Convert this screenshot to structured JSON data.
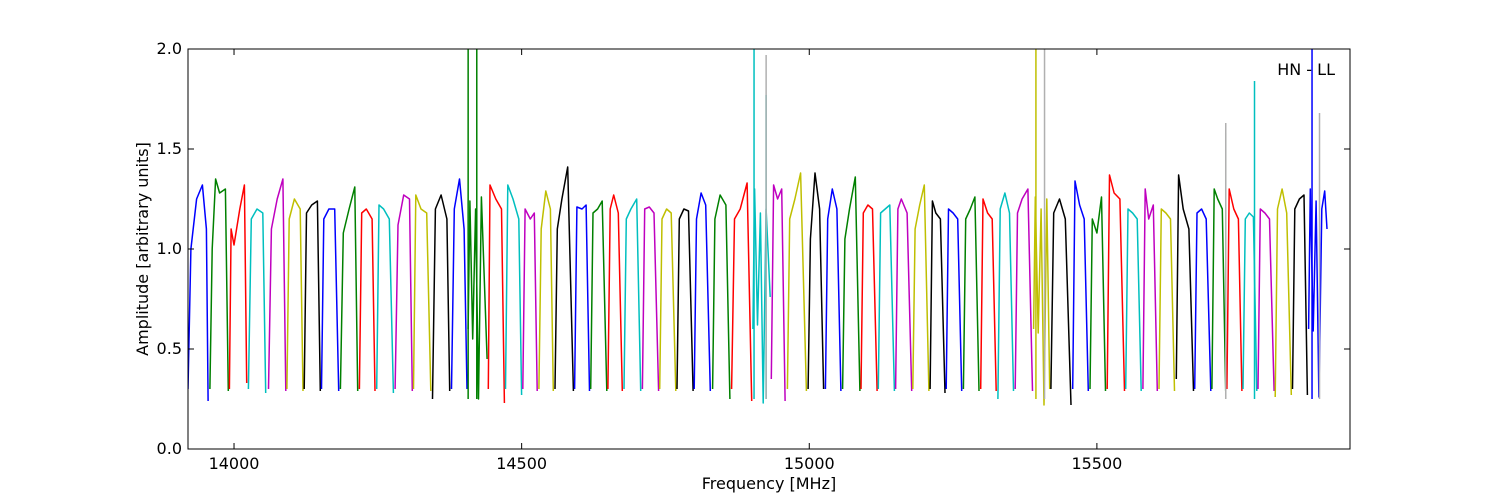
{
  "chart_data": {
    "type": "line",
    "title": "",
    "xlabel": "Frequency [MHz]",
    "ylabel": "Amplitude [arbitrary units]",
    "xlim": [
      13920,
      15940
    ],
    "ylim": [
      0.0,
      2.0
    ],
    "xticks": [
      14000,
      14500,
      15000,
      15500
    ],
    "yticks": [
      0.0,
      0.5,
      1.0,
      1.5,
      2.0
    ],
    "xtick_labels": [
      "14000",
      "14500",
      "15000",
      "15500"
    ],
    "ytick_labels": [
      "0.0",
      "0.5",
      "1.0",
      "1.5",
      "2.0"
    ],
    "grid": false,
    "annotation": "HN - LL",
    "annotation_position": "top-right",
    "color_cycle": [
      "#0000ff",
      "#008000",
      "#ff0000",
      "#00bfbf",
      "#bf00bf",
      "#bfbf00",
      "#000000"
    ],
    "series_description": "Repeating band-pass channel responses; each channel is a separate colored segment cycling blue, green, red, cyan, magenta, yellow, black.",
    "channels": [
      {
        "x": [
          13920,
          13925,
          13935,
          13945,
          13952,
          13955
        ],
        "y": [
          0.3,
          1.0,
          1.25,
          1.32,
          1.1,
          0.24
        ],
        "color": "#0000ff"
      },
      {
        "x": [
          13958,
          13962,
          13968,
          13975,
          13985,
          13990
        ],
        "y": [
          0.3,
          1.0,
          1.35,
          1.28,
          1.3,
          0.29
        ],
        "color": "#008000"
      },
      {
        "x": [
          13992,
          13995,
          14000,
          14010,
          14018,
          14022
        ],
        "y": [
          0.3,
          1.1,
          1.02,
          1.2,
          1.32,
          0.33
        ],
        "color": "#ff0000"
      },
      {
        "x": [
          14025,
          14030,
          14040,
          14050,
          14055
        ],
        "y": [
          0.3,
          1.15,
          1.2,
          1.18,
          0.28
        ],
        "color": "#00bfbf"
      },
      {
        "x": [
          14060,
          14065,
          14075,
          14085,
          14090
        ],
        "y": [
          0.3,
          1.1,
          1.25,
          1.35,
          0.29
        ],
        "color": "#bf00bf"
      },
      {
        "x": [
          14092,
          14096,
          14105,
          14115,
          14120
        ],
        "y": [
          0.3,
          1.15,
          1.25,
          1.2,
          0.29
        ],
        "color": "#bfbf00"
      },
      {
        "x": [
          14122,
          14126,
          14135,
          14145,
          14150
        ],
        "y": [
          0.3,
          1.18,
          1.22,
          1.24,
          0.29
        ],
        "color": "#000000"
      },
      {
        "x": [
          14152,
          14156,
          14165,
          14175,
          14182
        ],
        "y": [
          0.3,
          1.15,
          1.2,
          1.2,
          0.29
        ],
        "color": "#0000ff"
      },
      {
        "x": [
          14185,
          14190,
          14200,
          14210,
          14215
        ],
        "y": [
          0.3,
          1.08,
          1.2,
          1.31,
          0.29
        ],
        "color": "#008000"
      },
      {
        "x": [
          14218,
          14222,
          14230,
          14240,
          14245
        ],
        "y": [
          0.3,
          1.18,
          1.2,
          1.15,
          0.29
        ],
        "color": "#ff0000"
      },
      {
        "x": [
          14248,
          14252,
          14260,
          14270,
          14277
        ],
        "y": [
          0.3,
          1.22,
          1.2,
          1.15,
          0.28
        ],
        "color": "#00bfbf"
      },
      {
        "x": [
          14280,
          14285,
          14295,
          14305,
          14310
        ],
        "y": [
          0.3,
          1.12,
          1.27,
          1.25,
          0.29
        ],
        "color": "#bf00bf"
      },
      {
        "x": [
          14312,
          14316,
          14325,
          14335,
          14342
        ],
        "y": [
          0.3,
          1.27,
          1.2,
          1.18,
          0.29
        ],
        "color": "#bfbf00"
      },
      {
        "x": [
          14345,
          14350,
          14360,
          14370,
          14375
        ],
        "y": [
          0.25,
          1.2,
          1.27,
          1.15,
          0.29
        ],
        "color": "#000000"
      },
      {
        "x": [
          14378,
          14383,
          14392,
          14400,
          14405
        ],
        "y": [
          0.3,
          1.2,
          1.35,
          1.1,
          0.3
        ],
        "color": "#0000ff"
      },
      {
        "x": [
          14407,
          14410,
          14415,
          14420,
          14425,
          14430,
          14440
        ],
        "y": [
          0.6,
          1.24,
          0.55,
          1.2,
          0.25,
          1.26,
          0.45
        ],
        "color": "#008000"
      },
      {
        "x": [
          14442,
          14445,
          14455,
          14465,
          14470
        ],
        "y": [
          0.3,
          1.32,
          1.25,
          1.2,
          0.23
        ],
        "color": "#ff0000"
      },
      {
        "x": [
          14472,
          14476,
          14485,
          14495,
          14500
        ],
        "y": [
          0.3,
          1.32,
          1.25,
          1.15,
          0.27
        ],
        "color": "#00bfbf"
      },
      {
        "x": [
          14502,
          14506,
          14515,
          14522,
          14527
        ],
        "y": [
          0.3,
          1.2,
          1.15,
          1.18,
          0.29
        ],
        "color": "#bf00bf"
      },
      {
        "x": [
          14530,
          14534,
          14542,
          14550,
          14555
        ],
        "y": [
          0.3,
          1.1,
          1.29,
          1.2,
          0.29
        ],
        "color": "#bfbf00"
      },
      {
        "x": [
          14558,
          14562,
          14570,
          14580,
          14590
        ],
        "y": [
          0.3,
          1.1,
          1.25,
          1.41,
          0.29
        ],
        "color": "#000000"
      },
      {
        "x": [
          14592,
          14596,
          14605,
          14612,
          14618
        ],
        "y": [
          0.3,
          1.21,
          1.2,
          1.22,
          0.29
        ],
        "color": "#0000ff"
      },
      {
        "x": [
          14620,
          14624,
          14632,
          14640,
          14648
        ],
        "y": [
          0.3,
          1.18,
          1.2,
          1.24,
          0.29
        ],
        "color": "#008000"
      },
      {
        "x": [
          14650,
          14654,
          14660,
          14668,
          14675
        ],
        "y": [
          0.3,
          1.2,
          1.27,
          1.18,
          0.29
        ],
        "color": "#ff0000"
      },
      {
        "x": [
          14678,
          14682,
          14690,
          14700,
          14707
        ],
        "y": [
          0.3,
          1.15,
          1.2,
          1.25,
          0.29
        ],
        "color": "#00bfbf"
      },
      {
        "x": [
          14710,
          14714,
          14722,
          14730,
          14738
        ],
        "y": [
          0.3,
          1.2,
          1.21,
          1.18,
          0.29
        ],
        "color": "#bf00bf"
      },
      {
        "x": [
          14740,
          14744,
          14752,
          14760,
          14768
        ],
        "y": [
          0.3,
          1.15,
          1.2,
          1.18,
          0.29
        ],
        "color": "#bfbf00"
      },
      {
        "x": [
          14770,
          14774,
          14782,
          14790,
          14798
        ],
        "y": [
          0.3,
          1.15,
          1.2,
          1.19,
          0.29
        ],
        "color": "#000000"
      },
      {
        "x": [
          14800,
          14804,
          14812,
          14820,
          14828
        ],
        "y": [
          0.3,
          1.15,
          1.28,
          1.22,
          0.29
        ],
        "color": "#0000ff"
      },
      {
        "x": [
          14832,
          14836,
          14845,
          14855,
          14862
        ],
        "y": [
          0.3,
          1.15,
          1.27,
          1.22,
          0.25
        ],
        "color": "#008000"
      },
      {
        "x": [
          14865,
          14870,
          14880,
          14892,
          14900
        ],
        "y": [
          0.3,
          1.15,
          1.2,
          1.33,
          0.24
        ],
        "color": "#ff0000"
      },
      {
        "x": [
          14902,
          14905,
          14910,
          14915,
          14920,
          14925,
          14932
        ],
        "y": [
          0.6,
          1.3,
          0.62,
          1.18,
          0.23,
          1.2,
          0.76
        ],
        "color": "#00bfbf"
      },
      {
        "x": [
          14934,
          14938,
          14945,
          14952,
          14958
        ],
        "y": [
          0.35,
          1.32,
          1.25,
          1.3,
          0.24
        ],
        "color": "#bf00bf"
      },
      {
        "x": [
          14962,
          14966,
          14975,
          14985,
          14995
        ],
        "y": [
          0.3,
          1.15,
          1.25,
          1.38,
          0.29
        ],
        "color": "#bfbf00"
      },
      {
        "x": [
          14998,
          15002,
          15010,
          15018,
          15025
        ],
        "y": [
          0.3,
          1.05,
          1.38,
          1.2,
          0.3
        ],
        "color": "#000000"
      },
      {
        "x": [
          15028,
          15032,
          15040,
          15048,
          15055
        ],
        "y": [
          0.3,
          1.15,
          1.3,
          1.2,
          0.29
        ],
        "color": "#0000ff"
      },
      {
        "x": [
          15058,
          15062,
          15070,
          15080,
          15088
        ],
        "y": [
          0.3,
          1.05,
          1.2,
          1.36,
          0.29
        ],
        "color": "#008000"
      },
      {
        "x": [
          15090,
          15094,
          15102,
          15110,
          15118
        ],
        "y": [
          0.3,
          1.18,
          1.22,
          1.2,
          0.29
        ],
        "color": "#ff0000"
      },
      {
        "x": [
          15120,
          15124,
          15132,
          15140,
          15148
        ],
        "y": [
          0.3,
          1.18,
          1.2,
          1.22,
          0.29
        ],
        "color": "#00bfbf"
      },
      {
        "x": [
          15150,
          15154,
          15160,
          15170,
          15178
        ],
        "y": [
          0.3,
          1.2,
          1.25,
          1.18,
          0.29
        ],
        "color": "#bf00bf"
      },
      {
        "x": [
          15180,
          15184,
          15192,
          15200,
          15208
        ],
        "y": [
          0.3,
          1.1,
          1.22,
          1.32,
          0.29
        ],
        "color": "#bfbf00"
      },
      {
        "x": [
          15210,
          15214,
          15220,
          15228,
          15236
        ],
        "y": [
          0.3,
          1.24,
          1.18,
          1.15,
          0.28
        ],
        "color": "#000000"
      },
      {
        "x": [
          15238,
          15242,
          15250,
          15258,
          15265
        ],
        "y": [
          0.3,
          1.2,
          1.18,
          1.15,
          0.29
        ],
        "color": "#0000ff"
      },
      {
        "x": [
          15268,
          15272,
          15280,
          15288,
          15295
        ],
        "y": [
          0.3,
          1.15,
          1.2,
          1.26,
          0.29
        ],
        "color": "#008000"
      },
      {
        "x": [
          15298,
          15302,
          15310,
          15318,
          15325
        ],
        "y": [
          0.3,
          1.25,
          1.18,
          1.15,
          0.29
        ],
        "color": "#ff0000"
      },
      {
        "x": [
          15328,
          15332,
          15340,
          15348,
          15355
        ],
        "y": [
          0.25,
          1.2,
          1.28,
          1.18,
          0.29
        ],
        "color": "#00bfbf"
      },
      {
        "x": [
          15358,
          15362,
          15370,
          15380,
          15388
        ],
        "y": [
          0.3,
          1.18,
          1.25,
          1.3,
          0.29
        ],
        "color": "#bf00bf"
      },
      {
        "x": [
          15390,
          15393,
          15398,
          15403,
          15408,
          15413,
          15418
        ],
        "y": [
          0.6,
          1.26,
          0.58,
          1.2,
          0.22,
          1.25,
          0.3
        ],
        "color": "#bfbf00"
      },
      {
        "x": [
          15420,
          15425,
          15435,
          15445,
          15455
        ],
        "y": [
          0.3,
          1.18,
          1.25,
          1.15,
          0.22
        ],
        "color": "#000000"
      },
      {
        "x": [
          15458,
          15462,
          15470,
          15478,
          15485
        ],
        "y": [
          0.3,
          1.34,
          1.22,
          1.15,
          0.29
        ],
        "color": "#0000ff"
      },
      {
        "x": [
          15488,
          15492,
          15500,
          15508,
          15515
        ],
        "y": [
          0.3,
          1.15,
          1.08,
          1.26,
          0.29
        ],
        "color": "#008000"
      },
      {
        "x": [
          15518,
          15522,
          15530,
          15540,
          15548
        ],
        "y": [
          0.3,
          1.37,
          1.28,
          1.25,
          0.29
        ],
        "color": "#ff0000"
      },
      {
        "x": [
          15550,
          15554,
          15562,
          15570,
          15577
        ],
        "y": [
          0.3,
          1.2,
          1.18,
          1.15,
          0.29
        ],
        "color": "#00bfbf"
      },
      {
        "x": [
          15580,
          15584,
          15590,
          15598,
          15605
        ],
        "y": [
          0.3,
          1.3,
          1.15,
          1.22,
          0.29
        ],
        "color": "#bf00bf"
      },
      {
        "x": [
          15608,
          15612,
          15620,
          15628,
          15635
        ],
        "y": [
          0.3,
          1.2,
          1.18,
          1.15,
          0.29
        ],
        "color": "#bfbf00"
      },
      {
        "x": [
          15638,
          15642,
          15650,
          15660,
          15668
        ],
        "y": [
          0.35,
          1.37,
          1.2,
          1.1,
          0.29
        ],
        "color": "#000000"
      },
      {
        "x": [
          15670,
          15674,
          15682,
          15690,
          15698
        ],
        "y": [
          0.3,
          1.18,
          1.2,
          1.15,
          0.29
        ],
        "color": "#0000ff"
      },
      {
        "x": [
          15700,
          15704,
          15710,
          15718,
          15724
        ],
        "y": [
          0.3,
          1.3,
          1.25,
          1.2,
          0.29
        ],
        "color": "#008000"
      },
      {
        "x": [
          15726,
          15730,
          15738,
          15746,
          15752
        ],
        "y": [
          0.3,
          1.3,
          1.2,
          1.15,
          0.29
        ],
        "color": "#ff0000"
      },
      {
        "x": [
          15754,
          15758,
          15765,
          15772,
          15778
        ],
        "y": [
          0.3,
          1.15,
          1.18,
          1.16,
          0.29
        ],
        "color": "#00bfbf"
      },
      {
        "x": [
          15780,
          15784,
          15792,
          15800,
          15808
        ],
        "y": [
          0.3,
          1.2,
          1.18,
          1.15,
          0.29
        ],
        "color": "#bf00bf"
      },
      {
        "x": [
          15810,
          15814,
          15822,
          15830,
          15838
        ],
        "y": [
          0.26,
          1.2,
          1.3,
          1.18,
          0.27
        ],
        "color": "#bfbf00"
      },
      {
        "x": [
          15840,
          15844,
          15852,
          15860,
          15866
        ],
        "y": [
          0.3,
          1.2,
          1.25,
          1.27,
          0.27
        ],
        "color": "#000000"
      },
      {
        "x": [
          15868,
          15871,
          15876,
          15881,
          15886,
          15891,
          15896,
          15900
        ],
        "y": [
          0.6,
          1.3,
          0.59,
          1.24,
          0.26,
          1.2,
          1.29,
          1.1
        ],
        "color": "#0000ff"
      }
    ],
    "spikes": [
      {
        "x": 14407,
        "y_top": 2.0,
        "color": "#008000"
      },
      {
        "x": 14422,
        "y_top": 2.0,
        "color": "#008000"
      },
      {
        "x": 14904,
        "y_top": 2.0,
        "color": "#00bfbf"
      },
      {
        "x": 14925,
        "y_top": 1.77,
        "color": "#00bfbf"
      },
      {
        "x": 14925,
        "y_top": 1.97,
        "color": "#b0b0b0"
      },
      {
        "x": 15394,
        "y_top": 2.0,
        "color": "#bfbf00"
      },
      {
        "x": 15409,
        "y_top": 2.0,
        "color": "#b0b0b0"
      },
      {
        "x": 15724,
        "y_top": 1.58,
        "color": "#008000"
      },
      {
        "x": 15724,
        "y_top": 1.63,
        "color": "#b0b0b0"
      },
      {
        "x": 15774,
        "y_top": 1.84,
        "color": "#00bfbf"
      },
      {
        "x": 15874,
        "y_top": 2.0,
        "color": "#0000ff"
      },
      {
        "x": 15887,
        "y_top": 1.68,
        "color": "#b0b0b0"
      }
    ]
  }
}
